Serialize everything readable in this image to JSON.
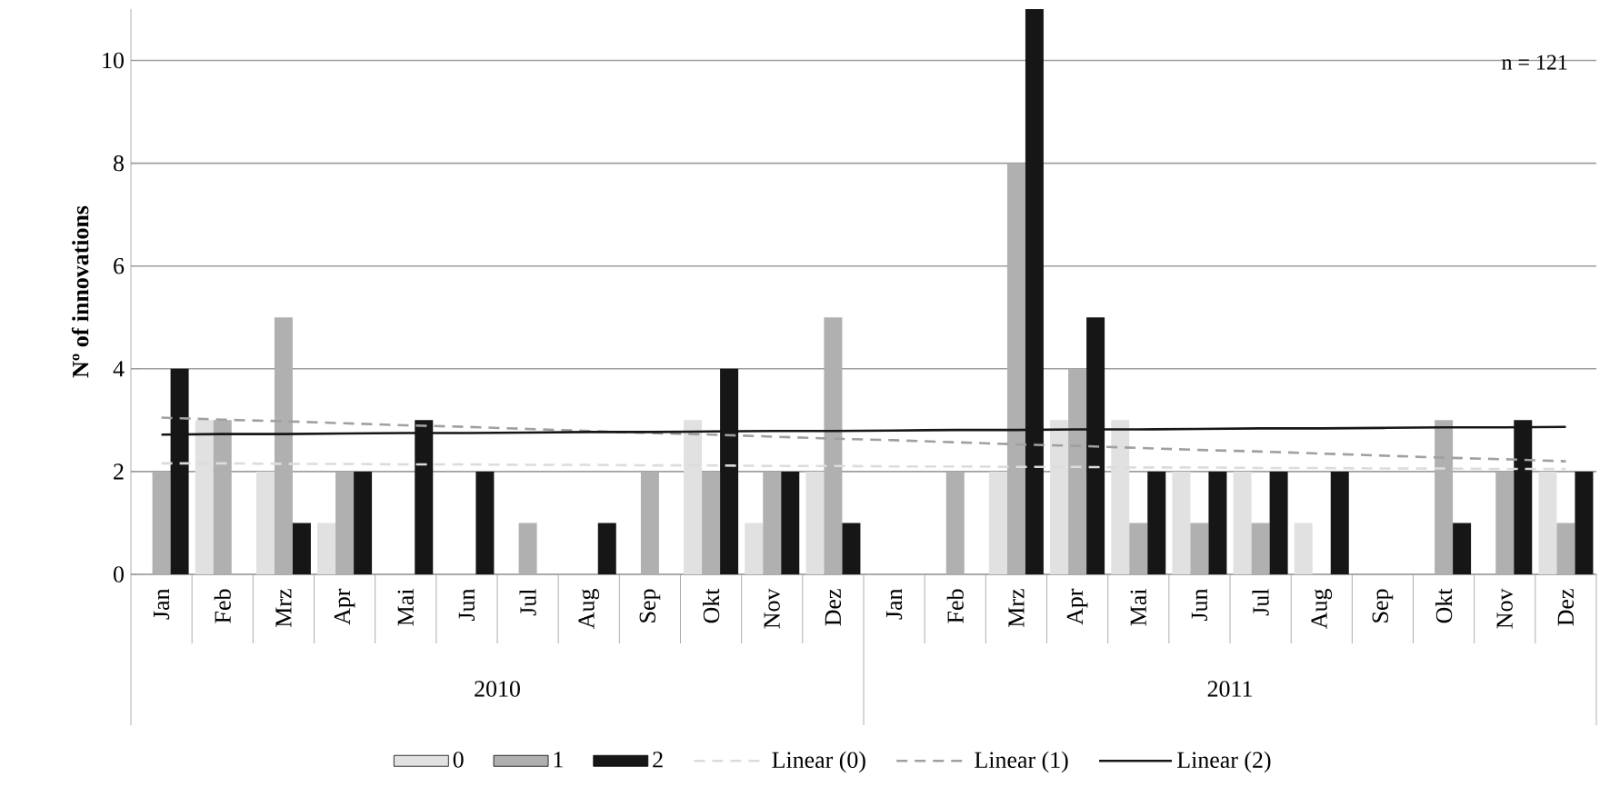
{
  "chart_data": {
    "type": "bar",
    "ylabel": "**Nº of innovations**",
    "categories": [
      "Jan",
      "Feb",
      "Mrz",
      "Apr",
      "Mai",
      "Jun",
      "Jul",
      "Aug",
      "Sep",
      "Okt",
      "Nov",
      "Dez",
      "Jan",
      "Feb",
      "Mrz",
      "Apr",
      "Mai",
      "Jun",
      "Jul",
      "Aug",
      "Sep",
      "Okt",
      "Nov",
      "Dez"
    ],
    "series": [
      {
        "name": "0",
        "color": "#e0e1e0",
        "values": [
          0,
          3,
          2,
          1,
          0,
          0,
          0,
          0,
          0,
          3,
          1,
          2,
          0,
          0,
          2,
          3,
          3,
          2,
          2,
          1,
          0,
          0,
          0,
          2
        ]
      },
      {
        "name": "1",
        "color": "#b0b0b0",
        "values": [
          2,
          3,
          5,
          2,
          0,
          0,
          1,
          0,
          2,
          2,
          2,
          5,
          0,
          2,
          8,
          4,
          1,
          1,
          1,
          0,
          0,
          3,
          2,
          1
        ]
      },
      {
        "name": "2",
        "color": "#161616",
        "values": [
          4,
          0,
          1,
          2,
          3,
          2,
          0,
          1,
          0,
          4,
          2,
          1,
          0,
          0,
          11,
          5,
          2,
          2,
          2,
          2,
          0,
          1,
          3,
          2
        ]
      },
      {
        "name": "Linear (0)",
        "type": "line",
        "color": "#dcdcdc",
        "line_style": "dashed",
        "values": [
          2.16,
          2.16,
          2.15,
          2.15,
          2.14,
          2.14,
          2.13,
          2.13,
          2.12,
          2.12,
          2.11,
          2.11,
          2.1,
          2.1,
          2.09,
          2.09,
          2.08,
          2.08,
          2.07,
          2.07,
          2.06,
          2.06,
          2.05,
          2.05
        ]
      },
      {
        "name": "Linear (1)",
        "type": "line",
        "color": "#a0a0a0",
        "line_style": "dashed",
        "values": [
          3.05,
          3.01,
          2.98,
          2.94,
          2.9,
          2.87,
          2.83,
          2.79,
          2.75,
          2.72,
          2.68,
          2.64,
          2.61,
          2.57,
          2.53,
          2.5,
          2.46,
          2.42,
          2.39,
          2.35,
          2.31,
          2.27,
          2.24,
          2.2
        ]
      },
      {
        "name": "Linear (2)",
        "type": "line",
        "color": "#161616",
        "line_style": "solid",
        "values": [
          2.72,
          2.73,
          2.73,
          2.74,
          2.75,
          2.75,
          2.76,
          2.77,
          2.77,
          2.78,
          2.79,
          2.79,
          2.8,
          2.81,
          2.81,
          2.82,
          2.82,
          2.83,
          2.84,
          2.84,
          2.85,
          2.86,
          2.86,
          2.87
        ]
      }
    ],
    "ylim": [
      0,
      11
    ],
    "yticks": [
      0,
      2,
      4,
      6,
      8,
      10
    ],
    "grid": "y",
    "legend": "bottom",
    "annotations": [
      "n = 121",
      "2010",
      "2011"
    ]
  }
}
